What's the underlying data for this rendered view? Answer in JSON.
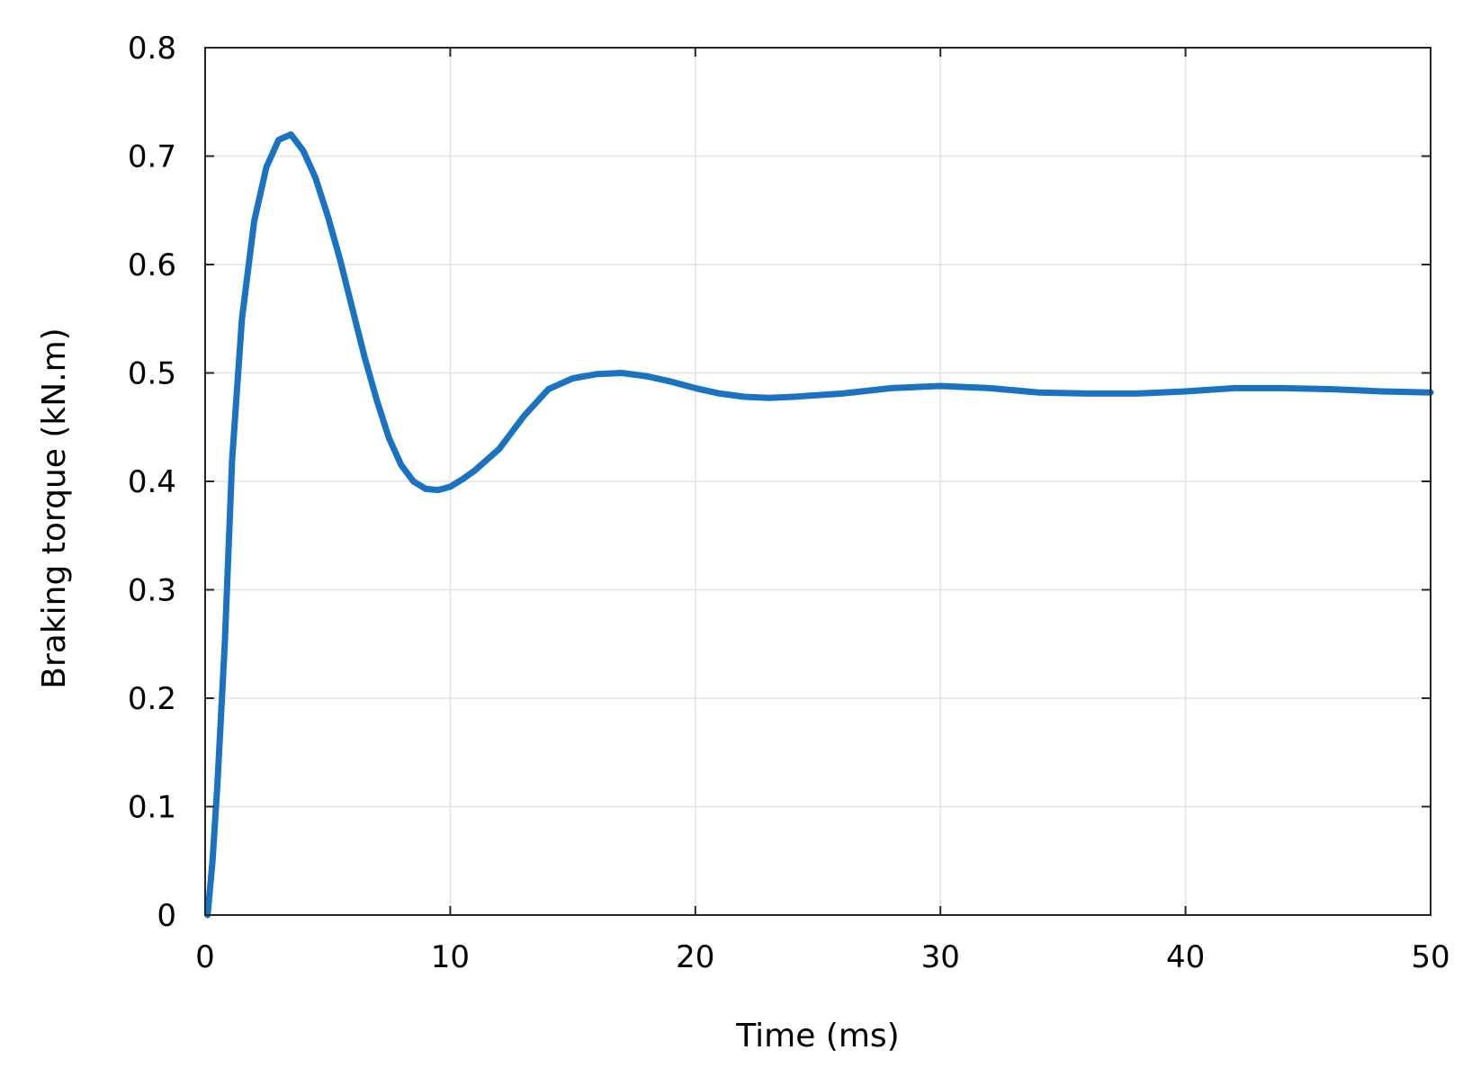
{
  "chart_data": {
    "type": "line",
    "title": "",
    "xlabel": "Time (ms)",
    "ylabel": "Braking torque (kN.m)",
    "xlim": [
      0,
      50
    ],
    "ylim": [
      0,
      0.8
    ],
    "xticks": [
      0,
      10,
      20,
      30,
      40,
      50
    ],
    "xtick_labels": [
      "0",
      "10",
      "20",
      "30",
      "40",
      "50"
    ],
    "yticks": [
      0,
      0.1,
      0.2,
      0.3,
      0.4,
      0.5,
      0.6,
      0.7,
      0.8
    ],
    "ytick_labels": [
      "0",
      "0.1",
      "0.2",
      "0.3",
      "0.4",
      "0.5",
      "0.6",
      "0.7",
      "0.8"
    ],
    "grid": true,
    "legend": "none",
    "colors": {
      "line": "#1a72c2",
      "grid": "#e3e3e3",
      "frame": "#262626"
    },
    "series": [
      {
        "x": [
          0.1,
          0.3,
          0.5,
          0.8,
          1.1,
          1.5,
          2.0,
          2.5,
          3.0,
          3.5,
          4.0,
          4.5,
          5.0,
          5.5,
          6.0,
          6.5,
          7.0,
          7.5,
          8.0,
          8.5,
          9.0,
          9.5,
          10.0,
          10.5,
          11.0,
          12.0,
          13.0,
          14.0,
          15.0,
          16.0,
          17.0,
          18.0,
          19.0,
          20.0,
          21.0,
          22.0,
          23.0,
          24.0,
          26.0,
          28.0,
          30.0,
          32.0,
          34.0,
          36.0,
          38.0,
          40.0,
          42.0,
          44.0,
          46.0,
          48.0,
          50.0
        ],
        "y": [
          0.0,
          0.05,
          0.12,
          0.25,
          0.42,
          0.55,
          0.64,
          0.69,
          0.715,
          0.72,
          0.705,
          0.68,
          0.645,
          0.605,
          0.56,
          0.515,
          0.475,
          0.44,
          0.415,
          0.4,
          0.393,
          0.392,
          0.395,
          0.402,
          0.41,
          0.43,
          0.46,
          0.485,
          0.495,
          0.499,
          0.5,
          0.497,
          0.492,
          0.486,
          0.481,
          0.478,
          0.477,
          0.478,
          0.481,
          0.486,
          0.488,
          0.486,
          0.482,
          0.481,
          0.481,
          0.483,
          0.486,
          0.486,
          0.485,
          0.483,
          0.482
        ]
      }
    ]
  }
}
